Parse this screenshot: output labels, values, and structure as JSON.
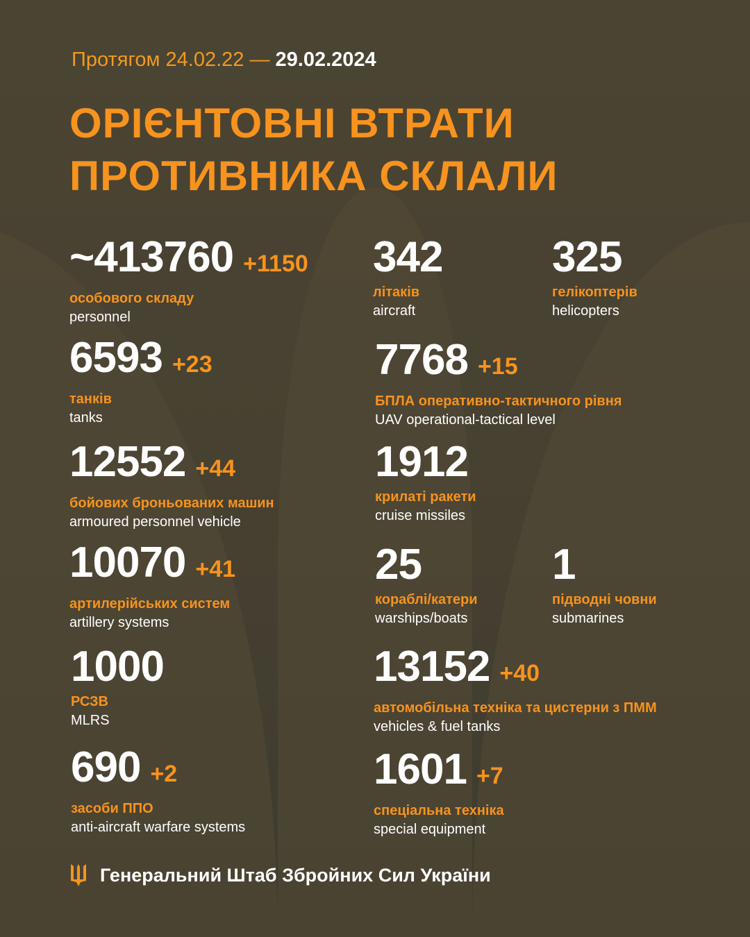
{
  "header": {
    "period_prefix": "Протягом 24.02.22 —",
    "period_end": "29.02.2024",
    "title_line1": "ОРІЄНТОВНІ ВТРАТИ",
    "title_line2": "ПРОТИВНИКА СКЛАЛИ"
  },
  "stats": [
    {
      "value": "~413760",
      "delta": "+1150",
      "ua": "особового складу",
      "en": "personnel"
    },
    {
      "value": "342",
      "delta": "",
      "ua": "літаків",
      "en": "aircraft"
    },
    {
      "value": "325",
      "delta": "",
      "ua": "гелікоптерів",
      "en": "helicopters"
    },
    {
      "value": "6593",
      "delta": "+23",
      "ua": "танків",
      "en": "tanks"
    },
    {
      "value": "7768",
      "delta": "+15",
      "ua": "БПЛА оперативно-тактичного рівня",
      "en": "UAV operational-tactical level"
    },
    {
      "value": "12552",
      "delta": "+44",
      "ua": "бойових броньованих машин",
      "en": "armoured personnel vehicle"
    },
    {
      "value": "1912",
      "delta": "",
      "ua": "крилаті ракети",
      "en": "cruise missiles"
    },
    {
      "value": "10070",
      "delta": "+41",
      "ua": "артилерійських систем",
      "en": "artillery systems"
    },
    {
      "value": "25",
      "delta": "",
      "ua": "кораблі/катери",
      "en": "warships/boats"
    },
    {
      "value": "1",
      "delta": "",
      "ua": "підводні човни",
      "en": "submarines"
    },
    {
      "value": "1000",
      "delta": "",
      "ua": "РСЗВ",
      "en": "MLRS"
    },
    {
      "value": "13152",
      "delta": "+40",
      "ua": "автомобільна техніка та цистерни з ПММ",
      "en": "vehicles & fuel tanks"
    },
    {
      "value": "690",
      "delta": "+2",
      "ua": "засоби ППО",
      "en": "anti-aircraft warfare systems"
    },
    {
      "value": "1601",
      "delta": "+7",
      "ua": "спеціальна техніка",
      "en": "special equipment"
    }
  ],
  "footer": {
    "text": "Генеральний Штаб Збройних Сил України",
    "icon": "trident-icon"
  },
  "colors": {
    "accent": "#f7931e",
    "background": "#4a4332",
    "text": "#ffffff"
  }
}
